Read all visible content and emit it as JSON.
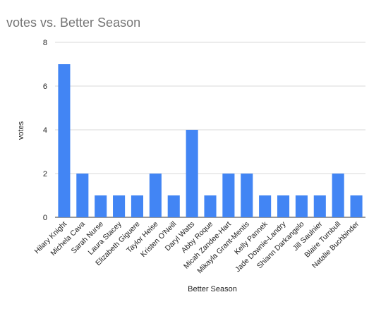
{
  "chart_data": {
    "type": "bar",
    "title": "votes vs. Better Season",
    "xlabel": "Better Season",
    "ylabel": "votes",
    "ylim": [
      0,
      8
    ],
    "yticks": [
      0,
      2,
      4,
      6,
      8
    ],
    "grid": true,
    "bar_color": "#4285f4",
    "categories": [
      "Hilary Knight",
      "Michela Cava",
      "Sarah Nurse",
      "Laura Stacey",
      "Elizabeth Giguere",
      "Taylor Heise",
      "Kristen O'Neill",
      "Daryl Watts",
      "Abby Roque",
      "Micah Zandee-Hart",
      "Mikayla Grant-Mentis",
      "Kelly Pannek",
      "Jade Downie-Landry",
      "Shiann Darkangelo",
      "Jill Saulnier",
      "Blaire Turnbull",
      "Natalie Buchbinder"
    ],
    "values": [
      7,
      2,
      1,
      1,
      1,
      2,
      1,
      4,
      1,
      2,
      2,
      1,
      1,
      1,
      1,
      2,
      1
    ]
  }
}
